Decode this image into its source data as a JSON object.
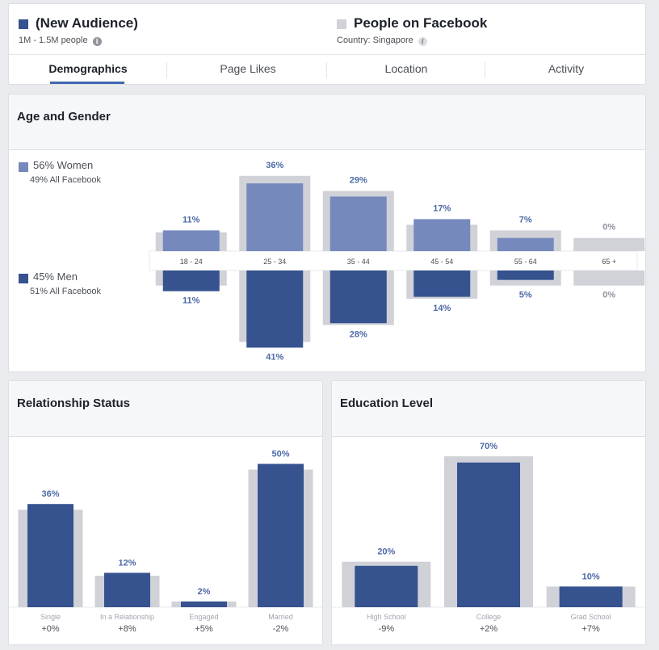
{
  "colors": {
    "selected_dark": "#36528f",
    "selected_light": "#7589bd",
    "baseline_gray": "#d0d2d8",
    "value_label": "#4d6aa6",
    "axis_label": "#8d949e"
  },
  "header": {
    "audience": {
      "name": "(New Audience)",
      "size": "1M - 1.5M people",
      "info_icon": "info-icon"
    },
    "comparison": {
      "name": "People on Facebook",
      "country": "Country: Singapore",
      "info_icon": "info-italic-icon"
    },
    "tabs": [
      {
        "label": "Demographics",
        "active": true
      },
      {
        "label": "Page Likes",
        "active": false
      },
      {
        "label": "Location",
        "active": false
      },
      {
        "label": "Activity",
        "active": false
      }
    ]
  },
  "age_gender": {
    "title": "Age and Gender",
    "women": {
      "label": "56% Women",
      "baseline": "49% All Facebook"
    },
    "men": {
      "label": "45% Men",
      "baseline": "51% All Facebook"
    }
  },
  "relationship": {
    "title": "Relationship Status"
  },
  "education": {
    "title": "Education Level"
  },
  "chart_data": [
    {
      "type": "bar",
      "title": "Age and Gender",
      "categories": [
        "18 - 24",
        "25 - 34",
        "35 - 44",
        "45 - 54",
        "55 - 64",
        "65 +"
      ],
      "series": [
        {
          "name": "56% Women",
          "values": [
            11,
            36,
            29,
            17,
            7,
            0
          ],
          "labels": [
            "11%",
            "36%",
            "29%",
            "17%",
            "7%",
            "0%"
          ]
        },
        {
          "name": "45% Men",
          "values": [
            11,
            41,
            28,
            14,
            5,
            0
          ],
          "labels": [
            "11%",
            "41%",
            "28%",
            "14%",
            "5%",
            "0%"
          ]
        }
      ],
      "baseline": {
        "women": [
          10,
          40,
          32,
          14,
          11,
          7
        ],
        "men": [
          8,
          38,
          29,
          15,
          8,
          8
        ]
      }
    },
    {
      "type": "bar",
      "title": "Relationship Status",
      "categories": [
        "Single",
        "In a Relationship",
        "Engaged",
        "Married"
      ],
      "values": [
        36,
        12,
        2,
        50
      ],
      "labels": [
        "36%",
        "12%",
        "2%",
        "50%"
      ],
      "baseline": [
        34,
        11,
        2,
        48
      ],
      "diffs": [
        "+0%",
        "+8%",
        "+5%",
        "-2%"
      ]
    },
    {
      "type": "bar",
      "title": "Education Level",
      "categories": [
        "High School",
        "College",
        "Grad School"
      ],
      "values": [
        20,
        70,
        10
      ],
      "labels": [
        "20%",
        "70%",
        "10%"
      ],
      "baseline": [
        22,
        73,
        10
      ],
      "diffs": [
        "-9%",
        "+2%",
        "+7%"
      ]
    }
  ]
}
